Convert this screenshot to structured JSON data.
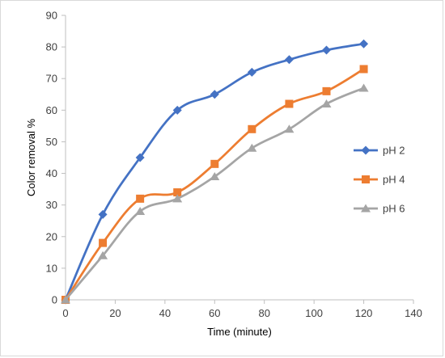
{
  "chart_data": {
    "type": "line",
    "title": "",
    "xlabel": "Time (minute)",
    "ylabel": "Color removal %",
    "xlim": [
      0,
      140
    ],
    "ylim": [
      0,
      90
    ],
    "xticks": [
      0,
      20,
      40,
      60,
      80,
      100,
      120,
      140
    ],
    "yticks": [
      0,
      10,
      20,
      30,
      40,
      50,
      60,
      70,
      80,
      90
    ],
    "grid": false,
    "legend_position": "right",
    "x": [
      0,
      15,
      30,
      45,
      60,
      75,
      90,
      105,
      120
    ],
    "series": [
      {
        "name": "pH 2",
        "color": "#4472C4",
        "marker": "diamond",
        "values": [
          0,
          27,
          45,
          60,
          65,
          72,
          76,
          79,
          81
        ]
      },
      {
        "name": "pH 4",
        "color": "#ED7D31",
        "marker": "square",
        "values": [
          0,
          18,
          32,
          34,
          43,
          54,
          62,
          66,
          73
        ]
      },
      {
        "name": "pH 6",
        "color": "#A5A5A5",
        "marker": "triangle",
        "values": [
          0,
          14,
          28,
          32,
          39,
          48,
          54,
          62,
          67
        ]
      }
    ]
  }
}
